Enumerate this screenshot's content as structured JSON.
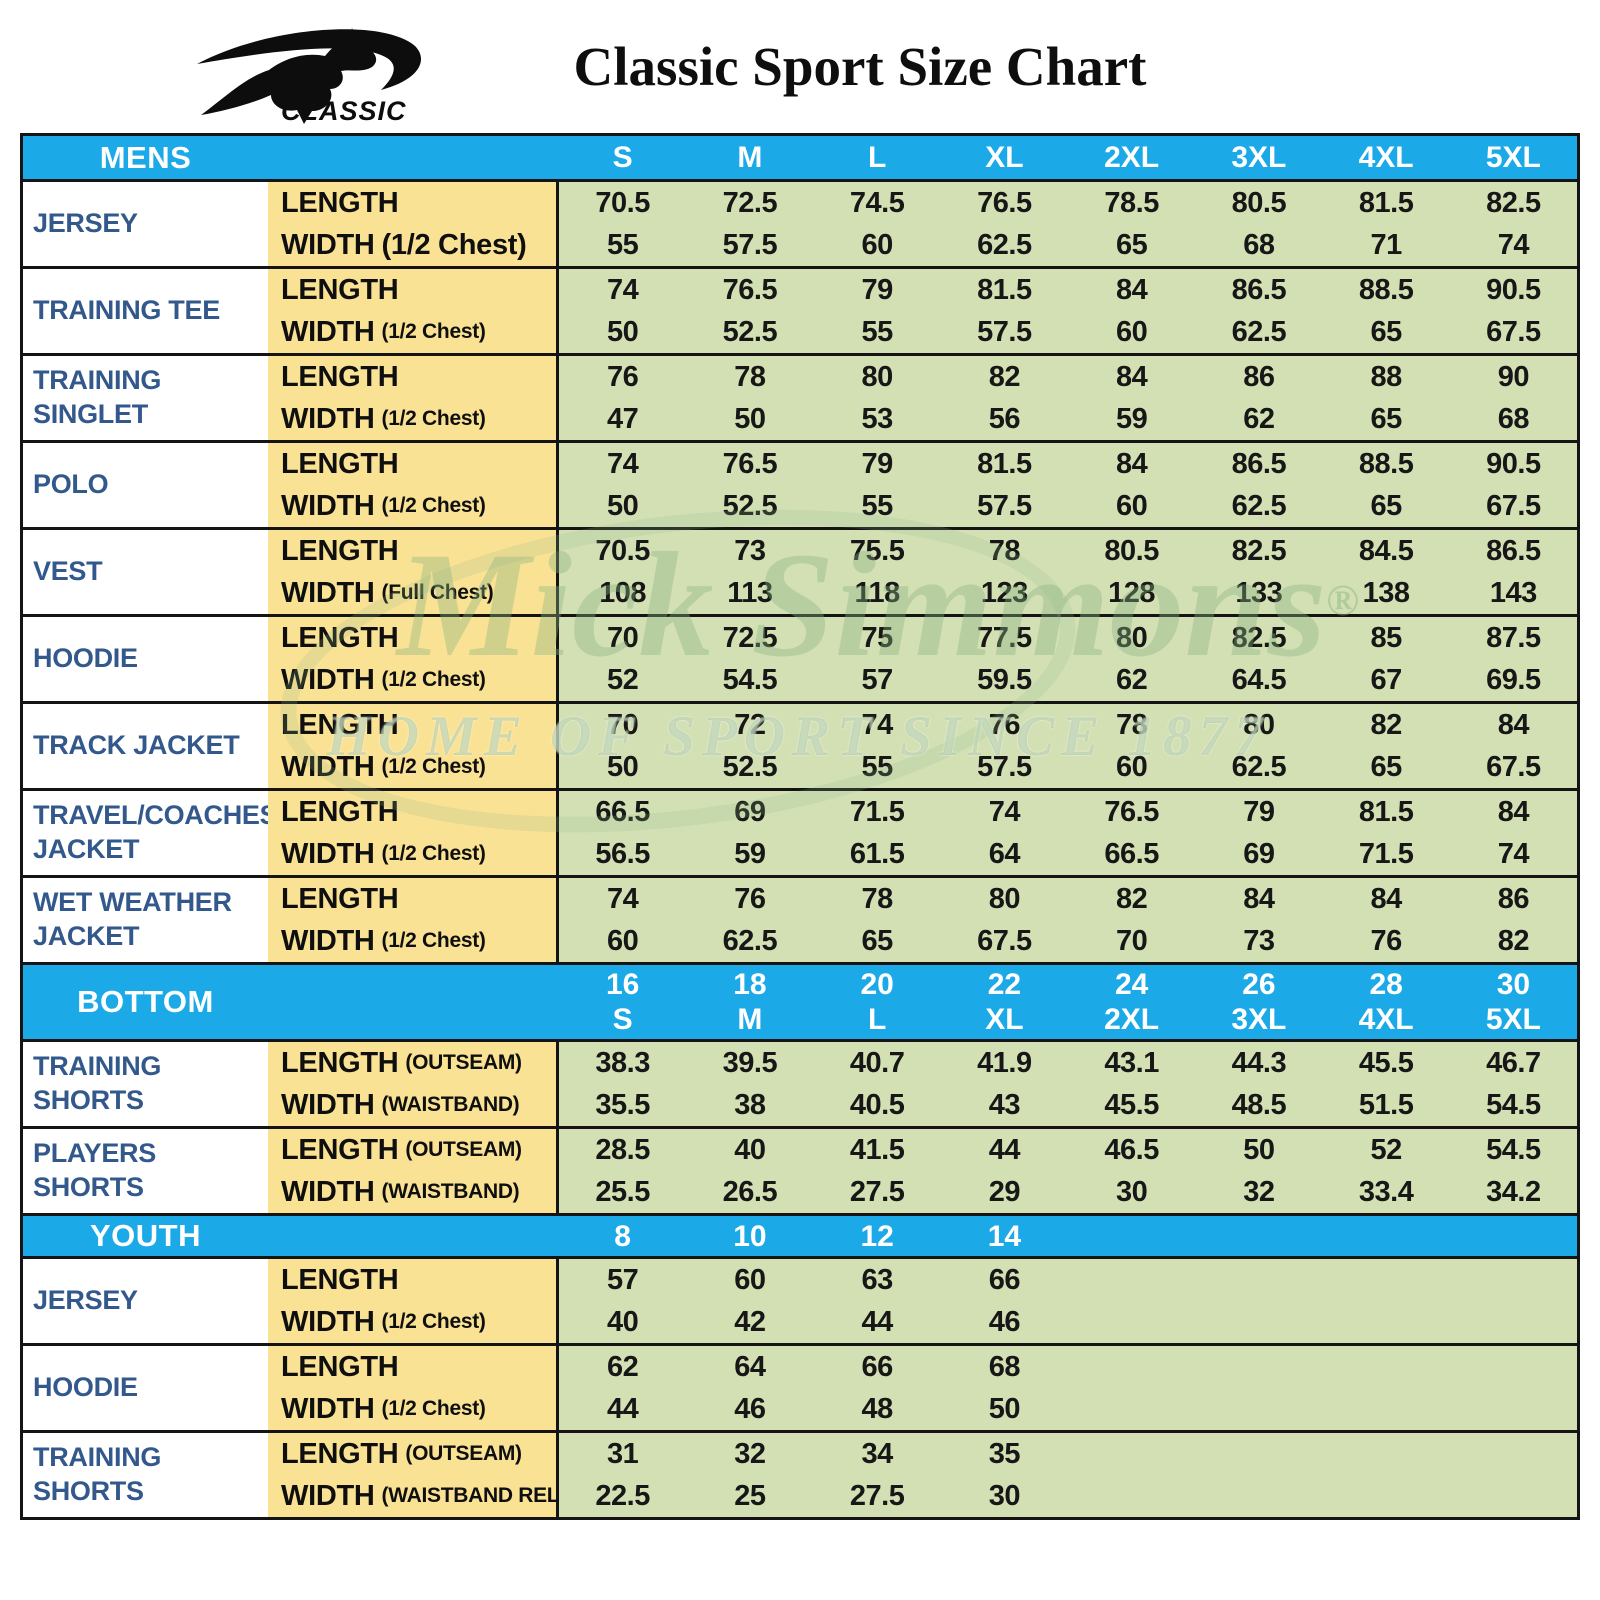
{
  "logo": {
    "brand": "CLASSIC",
    "icon": "kangaroo-swoosh"
  },
  "title": "Classic Sport Size Chart",
  "watermark": {
    "script": "Mick Simmons",
    "reg": "®",
    "tagline": "HOME OF SPORT SINCE 1877"
  },
  "colors": {
    "section_header_blue": "#1ba9e8",
    "measure_label_yellow": "#fae294",
    "value_cell_green": "#d3e0b4",
    "product_name_blue": "#33588c",
    "border_black": "#141414"
  },
  "sections": [
    {
      "label": "MENS",
      "sizes": [
        [
          "S"
        ],
        [
          "M"
        ],
        [
          "L"
        ],
        [
          "XL"
        ],
        [
          "2XL"
        ],
        [
          "3XL"
        ],
        [
          "4XL"
        ],
        [
          "5XL"
        ]
      ],
      "products": [
        {
          "name": "JERSEY",
          "measures": [
            {
              "label": "LENGTH",
              "note": "",
              "values": [
                "70.5",
                "72.5",
                "74.5",
                "76.5",
                "78.5",
                "80.5",
                "81.5",
                "82.5"
              ]
            },
            {
              "label": "WIDTH",
              "note": "(1/2 Chest)",
              "note_full": true,
              "values": [
                "55",
                "57.5",
                "60",
                "62.5",
                "65",
                "68",
                "71",
                "74"
              ]
            }
          ]
        },
        {
          "name": "TRAINING TEE",
          "measures": [
            {
              "label": "LENGTH",
              "note": "",
              "values": [
                "74",
                "76.5",
                "79",
                "81.5",
                "84",
                "86.5",
                "88.5",
                "90.5"
              ]
            },
            {
              "label": "WIDTH",
              "note": "(1/2 Chest)",
              "values": [
                "50",
                "52.5",
                "55",
                "57.5",
                "60",
                "62.5",
                "65",
                "67.5"
              ]
            }
          ]
        },
        {
          "name": "TRAINING SINGLET",
          "measures": [
            {
              "label": "LENGTH",
              "note": "",
              "values": [
                "76",
                "78",
                "80",
                "82",
                "84",
                "86",
                "88",
                "90"
              ]
            },
            {
              "label": "WIDTH",
              "note": "(1/2 Chest)",
              "values": [
                "47",
                "50",
                "53",
                "56",
                "59",
                "62",
                "65",
                "68"
              ]
            }
          ]
        },
        {
          "name": "POLO",
          "measures": [
            {
              "label": "LENGTH",
              "note": "",
              "values": [
                "74",
                "76.5",
                "79",
                "81.5",
                "84",
                "86.5",
                "88.5",
                "90.5"
              ]
            },
            {
              "label": "WIDTH",
              "note": "(1/2 Chest)",
              "values": [
                "50",
                "52.5",
                "55",
                "57.5",
                "60",
                "62.5",
                "65",
                "67.5"
              ]
            }
          ]
        },
        {
          "name": "VEST",
          "measures": [
            {
              "label": "LENGTH",
              "note": "",
              "values": [
                "70.5",
                "73",
                "75.5",
                "78",
                "80.5",
                "82.5",
                "84.5",
                "86.5"
              ]
            },
            {
              "label": "WIDTH",
              "note": "(Full Chest)",
              "values": [
                "108",
                "113",
                "118",
                "123",
                "128",
                "133",
                "138",
                "143"
              ]
            }
          ]
        },
        {
          "name": "HOODIE",
          "measures": [
            {
              "label": "LENGTH",
              "note": "",
              "values": [
                "70",
                "72.5",
                "75",
                "77.5",
                "80",
                "82.5",
                "85",
                "87.5"
              ]
            },
            {
              "label": "WIDTH",
              "note": "(1/2 Chest)",
              "values": [
                "52",
                "54.5",
                "57",
                "59.5",
                "62",
                "64.5",
                "67",
                "69.5"
              ]
            }
          ]
        },
        {
          "name": "TRACK JACKET",
          "measures": [
            {
              "label": "LENGTH",
              "note": "",
              "values": [
                "70",
                "72",
                "74",
                "76",
                "78",
                "80",
                "82",
                "84"
              ]
            },
            {
              "label": "WIDTH",
              "note": "(1/2 Chest)",
              "values": [
                "50",
                "52.5",
                "55",
                "57.5",
                "60",
                "62.5",
                "65",
                "67.5"
              ]
            }
          ]
        },
        {
          "name": "TRAVEL/COACHES JACKET",
          "measures": [
            {
              "label": "LENGTH",
              "note": "",
              "values": [
                "66.5",
                "69",
                "71.5",
                "74",
                "76.5",
                "79",
                "81.5",
                "84"
              ]
            },
            {
              "label": "WIDTH",
              "note": "(1/2 Chest)",
              "values": [
                "56.5",
                "59",
                "61.5",
                "64",
                "66.5",
                "69",
                "71.5",
                "74"
              ]
            }
          ]
        },
        {
          "name": "WET WEATHER JACKET",
          "measures": [
            {
              "label": "LENGTH",
              "note": "",
              "values": [
                "74",
                "76",
                "78",
                "80",
                "82",
                "84",
                "84",
                "86"
              ]
            },
            {
              "label": "WIDTH",
              "note": "(1/2 Chest)",
              "values": [
                "60",
                "62.5",
                "65",
                "67.5",
                "70",
                "73",
                "76",
                "82"
              ]
            }
          ]
        }
      ]
    },
    {
      "label": "BOTTOM",
      "sizes": [
        [
          "16",
          "S"
        ],
        [
          "18",
          "M"
        ],
        [
          "20",
          "L"
        ],
        [
          "22",
          "XL"
        ],
        [
          "24",
          "2XL"
        ],
        [
          "26",
          "3XL"
        ],
        [
          "28",
          "4XL"
        ],
        [
          "30",
          "5XL"
        ]
      ],
      "products": [
        {
          "name": "TRAINING SHORTS",
          "measures": [
            {
              "label": "LENGTH",
              "note": "(OUTSEAM)",
              "values": [
                "38.3",
                "39.5",
                "40.7",
                "41.9",
                "43.1",
                "44.3",
                "45.5",
                "46.7"
              ]
            },
            {
              "label": "WIDTH",
              "note": "(WAISTBAND)",
              "values": [
                "35.5",
                "38",
                "40.5",
                "43",
                "45.5",
                "48.5",
                "51.5",
                "54.5"
              ]
            }
          ]
        },
        {
          "name": "PLAYERS SHORTS",
          "measures": [
            {
              "label": "LENGTH",
              "note": "(OUTSEAM)",
              "values": [
                "28.5",
                "40",
                "41.5",
                "44",
                "46.5",
                "50",
                "52",
                "54.5"
              ]
            },
            {
              "label": "WIDTH",
              "note": "(WAISTBAND)",
              "values": [
                "25.5",
                "26.5",
                "27.5",
                "29",
                "30",
                "32",
                "33.4",
                "34.2"
              ]
            }
          ]
        }
      ]
    },
    {
      "label": "YOUTH",
      "sizes": [
        [
          "8"
        ],
        [
          "10"
        ],
        [
          "12"
        ],
        [
          "14"
        ],
        [],
        [],
        [],
        []
      ],
      "products": [
        {
          "name": "JERSEY",
          "measures": [
            {
              "label": "LENGTH",
              "note": "",
              "values": [
                "57",
                "60",
                "63",
                "66",
                "",
                "",
                "",
                ""
              ]
            },
            {
              "label": "WIDTH",
              "note": "(1/2 Chest)",
              "values": [
                "40",
                "42",
                "44",
                "46",
                "",
                "",
                "",
                ""
              ]
            }
          ]
        },
        {
          "name": "HOODIE",
          "measures": [
            {
              "label": "LENGTH",
              "note": "",
              "values": [
                "62",
                "64",
                "66",
                "68",
                "",
                "",
                "",
                ""
              ]
            },
            {
              "label": "WIDTH",
              "note": "(1/2 Chest)",
              "values": [
                "44",
                "46",
                "48",
                "50",
                "",
                "",
                "",
                ""
              ]
            }
          ]
        },
        {
          "name": "TRAINING SHORTS",
          "measures": [
            {
              "label": "LENGTH",
              "note": "(OUTSEAM)",
              "values": [
                "31",
                "32",
                "34",
                "35",
                "",
                "",
                "",
                ""
              ]
            },
            {
              "label": "WIDTH",
              "note": "(WAISTBAND RELAX)",
              "values": [
                "22.5",
                "25",
                "27.5",
                "30",
                "",
                "",
                "",
                ""
              ]
            }
          ]
        }
      ]
    }
  ]
}
